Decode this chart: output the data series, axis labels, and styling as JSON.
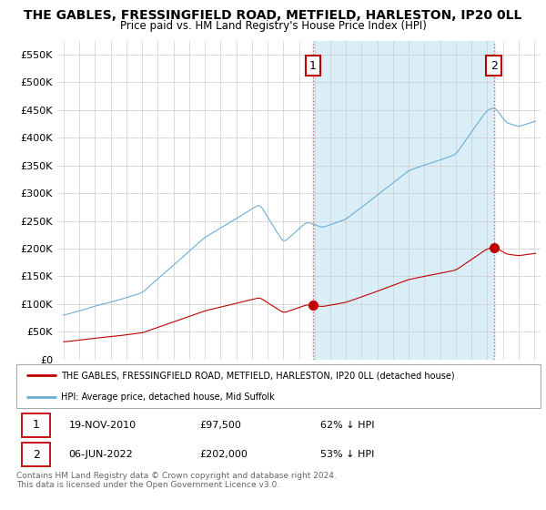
{
  "title": "THE GABLES, FRESSINGFIELD ROAD, METFIELD, HARLESTON, IP20 0LL",
  "subtitle": "Price paid vs. HM Land Registry's House Price Index (HPI)",
  "ylim": [
    0,
    575000
  ],
  "yticks": [
    0,
    50000,
    100000,
    150000,
    200000,
    250000,
    300000,
    350000,
    400000,
    450000,
    500000,
    550000
  ],
  "ytick_labels": [
    "£0",
    "£50K",
    "£100K",
    "£150K",
    "£200K",
    "£250K",
    "£300K",
    "£350K",
    "£400K",
    "£450K",
    "£500K",
    "£550K"
  ],
  "hpi_color": "#6aaed6",
  "hpi_fill_color": "#daeef7",
  "price_color": "#c00000",
  "marker1_date_num": 2010.89,
  "marker1_price": 97500,
  "marker1_label": "1",
  "marker1_date_str": "19-NOV-2010",
  "marker1_price_str": "£97,500",
  "marker1_pct": "62% ↓ HPI",
  "marker2_date_num": 2022.43,
  "marker2_price": 202000,
  "marker2_label": "2",
  "marker2_date_str": "06-JUN-2022",
  "marker2_price_str": "£202,000",
  "marker2_pct": "53% ↓ HPI",
  "legend_line1": "THE GABLES, FRESSINGFIELD ROAD, METFIELD, HARLESTON, IP20 0LL (detached house)",
  "legend_line2": "HPI: Average price, detached house, Mid Suffolk",
  "footer": "Contains HM Land Registry data © Crown copyright and database right 2024.\nThis data is licensed under the Open Government Licence v3.0.",
  "vline1_x": 2010.89,
  "vline2_x": 2022.43,
  "xlim_start": 1994.6,
  "xlim_end": 2025.4
}
